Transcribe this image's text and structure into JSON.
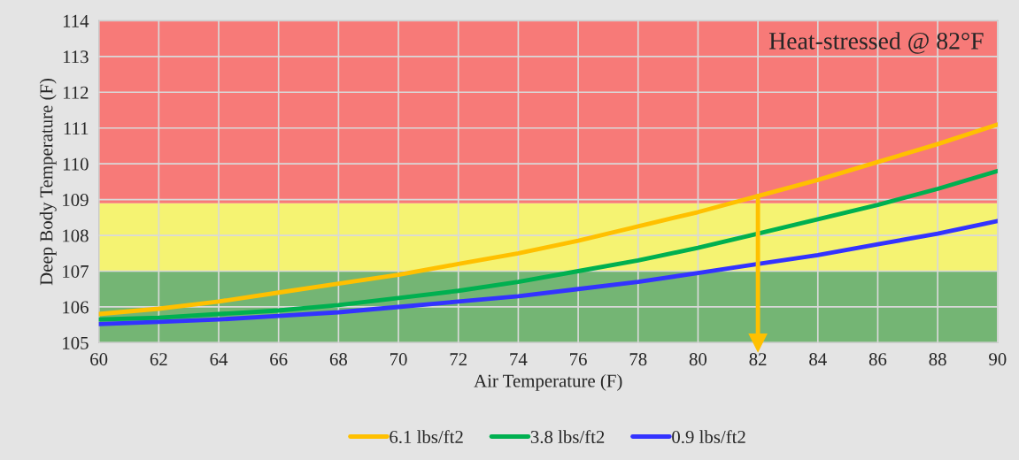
{
  "chart_data": {
    "type": "line",
    "xlabel": "Air Temperature (F)",
    "ylabel": "Deep Body Temperature (F)",
    "x": [
      60,
      62,
      64,
      66,
      68,
      70,
      72,
      74,
      76,
      78,
      80,
      82,
      84,
      86,
      88,
      90
    ],
    "series": [
      {
        "name": "6.1 lbs/ft2",
        "color": "#ffc000",
        "values": [
          105.8,
          105.95,
          106.15,
          106.4,
          106.65,
          106.9,
          107.2,
          107.5,
          107.85,
          108.25,
          108.65,
          109.1,
          109.55,
          110.05,
          110.55,
          111.1
        ]
      },
      {
        "name": "3.8 lbs/ft2",
        "color": "#00b050",
        "values": [
          105.65,
          105.7,
          105.8,
          105.9,
          106.05,
          106.25,
          106.45,
          106.7,
          107.0,
          107.3,
          107.65,
          108.05,
          108.45,
          108.85,
          109.3,
          109.8
        ]
      },
      {
        "name": "0.9 lbs/ft2",
        "color": "#3333ff",
        "values": [
          105.52,
          105.58,
          105.65,
          105.75,
          105.85,
          106.0,
          106.15,
          106.3,
          106.5,
          106.7,
          106.95,
          107.2,
          107.45,
          107.75,
          108.05,
          108.4
        ]
      }
    ],
    "bands": [
      {
        "axis": "y",
        "from": 105,
        "to": 107,
        "color": "#74b574"
      },
      {
        "axis": "y",
        "from": 107,
        "to": 108.9,
        "color": "#f5f372"
      },
      {
        "axis": "y",
        "from": 108.9,
        "to": 114,
        "color": "#f77a78"
      }
    ],
    "annotations": [
      "Heat-stressed @ 82°F"
    ],
    "ref_lines": [
      {
        "axis": "x",
        "value": 82,
        "color": "#ffc000"
      }
    ],
    "xlim": [
      60,
      90
    ],
    "ylim": [
      105,
      114
    ],
    "xticks": [
      60,
      62,
      64,
      66,
      68,
      70,
      72,
      74,
      76,
      78,
      80,
      82,
      84,
      86,
      88,
      90
    ],
    "yticks": [
      105,
      106,
      107,
      108,
      109,
      110,
      111,
      112,
      113,
      114
    ],
    "grid": true,
    "legend": "bottom",
    "marker": "none",
    "line_style": "solid"
  }
}
